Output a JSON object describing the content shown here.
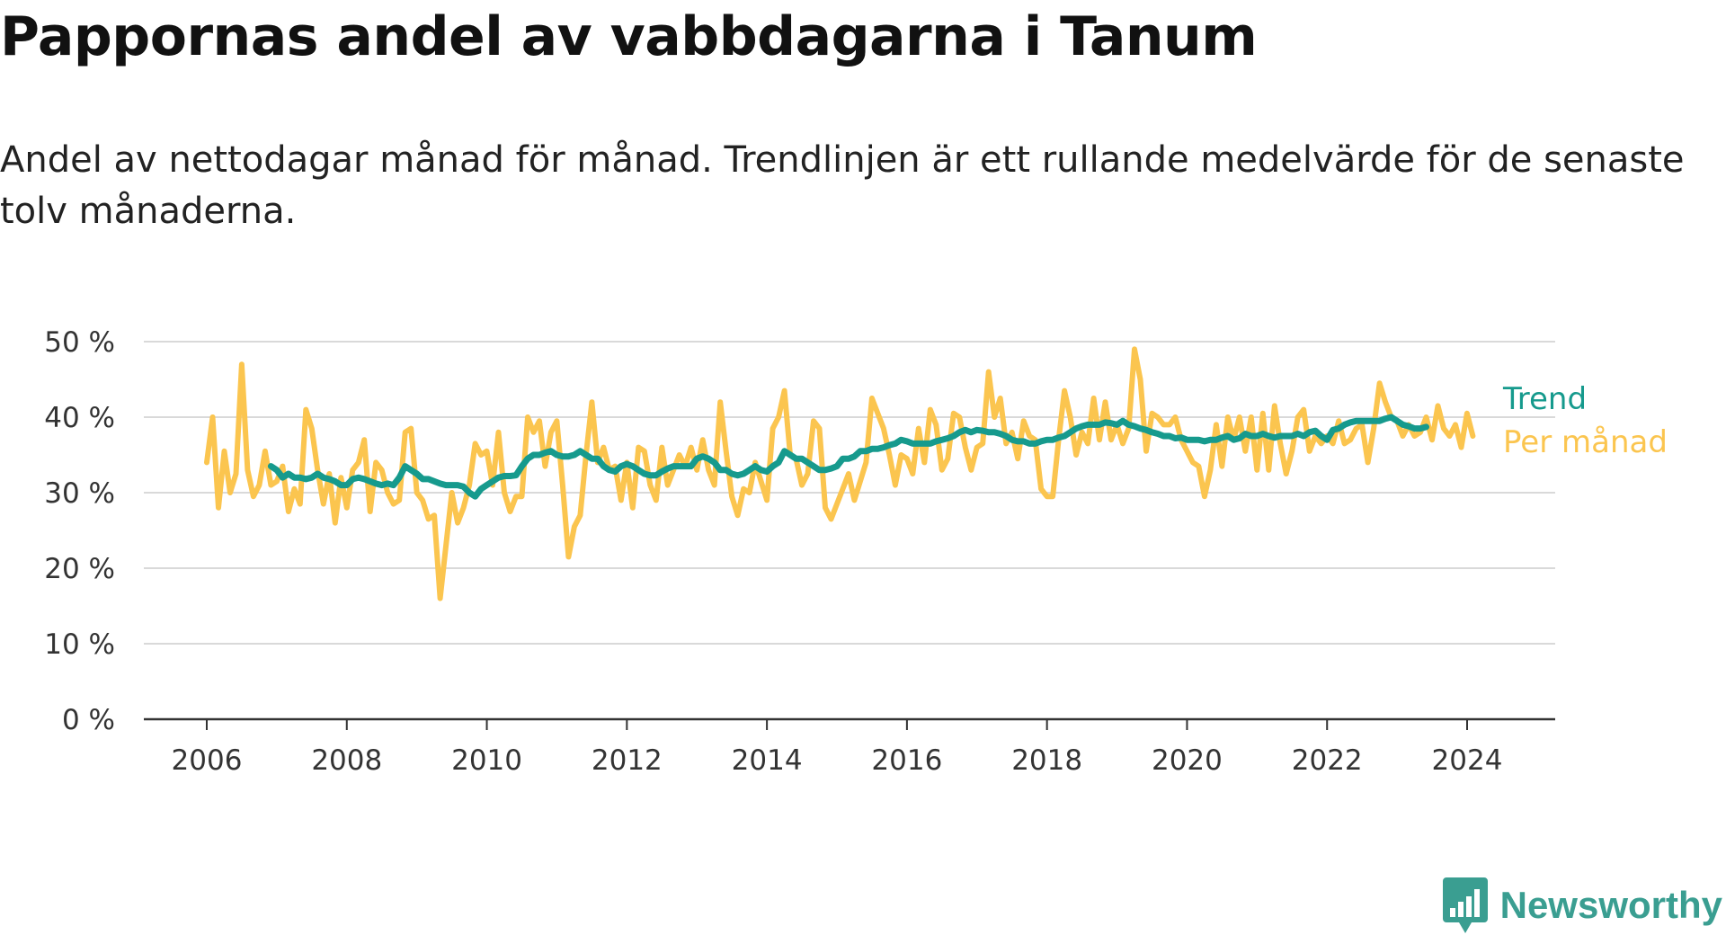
{
  "header": {
    "title": "Pappornas andel av vabbdagarna i Tanum",
    "subtitle": "Andel av nettodagar månad för månad. Trendlinjen är ett rullande medelvärde för de senaste tolv månaderna."
  },
  "brand": {
    "name": "Newsworthy",
    "color": "#3a9e91",
    "icon": "bar-chart-badge-icon"
  },
  "colors": {
    "monthly": "#fbc54f",
    "trend": "#169a8d",
    "grid": "#d9d9d9",
    "axis": "#333333"
  },
  "chart_data": {
    "type": "line",
    "title": "Pappornas andel av vabbdagarna i Tanum",
    "xlabel": "",
    "ylabel": "",
    "x_unit": "year",
    "xlim": [
      2005.8,
      2025.2
    ],
    "ylim": [
      0,
      50
    ],
    "y_ticks": [
      0,
      10,
      20,
      30,
      40,
      50
    ],
    "y_tick_labels": [
      "0 %",
      "10 %",
      "20 %",
      "30 %",
      "40 %",
      "50 %"
    ],
    "x_ticks": [
      2006,
      2008,
      2010,
      2012,
      2014,
      2016,
      2018,
      2020,
      2022,
      2024
    ],
    "x_tick_labels": [
      "2006",
      "2008",
      "2010",
      "2012",
      "2014",
      "2016",
      "2018",
      "2020",
      "2022",
      "2024"
    ],
    "grid": true,
    "legend_placement": "right end of lines",
    "series": [
      {
        "name": "Trend",
        "start": 2006.9167,
        "step": 0.08333,
        "values": [
          33.5,
          33.0,
          32.0,
          32.5,
          32.0,
          32.0,
          31.8,
          32.0,
          32.5,
          32.0,
          31.8,
          31.5,
          31.0,
          31.0,
          31.8,
          32.0,
          31.8,
          31.5,
          31.2,
          31.0,
          31.2,
          31.0,
          32.0,
          33.5,
          33.0,
          32.5,
          31.8,
          31.8,
          31.5,
          31.2,
          31.0,
          31.0,
          31.0,
          30.8,
          30.0,
          29.5,
          30.5,
          31.0,
          31.5,
          32.0,
          32.2,
          32.2,
          32.3,
          33.5,
          34.5,
          35.0,
          35.0,
          35.3,
          35.5,
          35.0,
          34.8,
          34.8,
          35.0,
          35.5,
          35.0,
          34.5,
          34.5,
          33.5,
          33.0,
          32.8,
          33.5,
          33.8,
          33.5,
          33.0,
          32.5,
          32.3,
          32.3,
          32.8,
          33.2,
          33.5,
          33.5,
          33.5,
          33.5,
          34.5,
          34.8,
          34.5,
          34.0,
          33.0,
          33.0,
          32.5,
          32.3,
          32.5,
          33.0,
          33.5,
          33.0,
          32.8,
          33.5,
          34.0,
          35.5,
          35.0,
          34.5,
          34.5,
          34.0,
          33.5,
          33.0,
          33.0,
          33.2,
          33.5,
          34.5,
          34.5,
          34.8,
          35.5,
          35.5,
          35.8,
          35.8,
          36.0,
          36.3,
          36.5,
          37.0,
          36.8,
          36.5,
          36.5,
          36.5,
          36.5,
          36.8,
          37.0,
          37.2,
          37.5,
          38.0,
          38.3,
          38.0,
          38.3,
          38.2,
          38.0,
          38.0,
          37.8,
          37.5,
          37.0,
          36.8,
          36.8,
          36.5,
          36.5,
          36.8,
          37.0,
          37.0,
          37.3,
          37.5,
          38.0,
          38.5,
          38.8,
          39.0,
          39.0,
          39.0,
          39.3,
          39.2,
          39.0,
          39.5,
          39.0,
          38.8,
          38.5,
          38.3,
          38.0,
          37.8,
          37.5,
          37.5,
          37.2,
          37.3,
          37.0,
          37.0,
          37.0,
          36.8,
          37.0,
          37.0,
          37.3,
          37.5,
          37.0,
          37.2,
          37.8,
          37.5,
          37.5,
          37.8,
          37.5,
          37.3,
          37.5,
          37.5,
          37.5,
          37.8,
          37.5,
          38.0,
          38.2,
          37.5,
          37.0,
          38.3,
          38.5,
          39.0,
          39.3,
          39.5,
          39.5,
          39.5,
          39.5,
          39.5,
          39.8,
          40.0,
          39.5,
          39.0,
          38.8,
          38.5,
          38.5,
          38.7
        ]
      },
      {
        "name": "Per månad",
        "start": 2006.0,
        "step": 0.08333,
        "values": [
          34,
          40,
          28,
          35.5,
          30,
          32.5,
          47,
          33,
          29.5,
          31,
          35.5,
          31,
          31.5,
          33.5,
          27.5,
          30.5,
          28.5,
          41,
          38.5,
          33,
          28.5,
          32.5,
          26,
          32,
          28,
          33,
          34,
          37,
          27.5,
          34,
          33,
          30,
          28.5,
          29,
          38,
          38.5,
          30,
          29,
          26.5,
          27,
          16,
          23,
          30,
          26,
          28,
          31,
          36.5,
          35,
          35.5,
          31,
          38,
          30,
          27.5,
          29.5,
          29.5,
          40,
          38,
          39.5,
          33.5,
          38,
          39.5,
          31,
          21.5,
          25.5,
          27,
          35,
          42,
          34,
          36,
          33,
          33.5,
          29,
          34,
          28,
          36,
          35.5,
          31,
          29,
          36,
          31,
          33,
          35,
          33.5,
          36,
          33,
          37,
          33,
          31,
          42,
          35.5,
          29.5,
          27,
          30.5,
          30,
          34,
          31.5,
          29,
          38.5,
          40,
          43.5,
          35,
          34.5,
          31,
          32.5,
          39.5,
          38.5,
          28,
          26.5,
          28.5,
          30.5,
          32.5,
          29,
          31.5,
          34,
          42.5,
          40.5,
          38.5,
          35,
          31,
          35,
          34.5,
          32.5,
          38.5,
          34,
          41,
          39,
          33,
          34.5,
          40.5,
          40,
          36,
          33,
          36,
          36.5,
          46,
          40,
          42.5,
          36.5,
          38,
          34.5,
          39.5,
          37.5,
          37,
          30.5,
          29.5,
          29.5,
          37,
          43.5,
          40,
          35,
          38,
          36.5,
          42.5,
          37,
          42,
          37,
          39,
          36.5,
          38.5,
          49,
          45,
          35.5,
          40.5,
          40,
          39,
          39,
          40,
          37,
          35.5,
          34,
          33.5,
          29.5,
          33,
          39,
          33.5,
          40,
          37,
          40,
          35.5,
          40,
          33,
          40.5,
          33,
          41.5,
          36.5,
          32.5,
          35.5,
          40,
          41,
          35.5,
          37.5,
          36.5,
          37.5,
          36.5,
          39.5,
          36.5,
          37,
          38.5,
          39,
          34,
          38.5,
          44.5,
          42,
          40,
          39.5,
          37.5,
          39,
          37.5,
          38,
          40,
          37,
          41.5,
          38.5,
          37.5,
          39,
          36,
          40.5,
          37.5
        ]
      }
    ]
  }
}
